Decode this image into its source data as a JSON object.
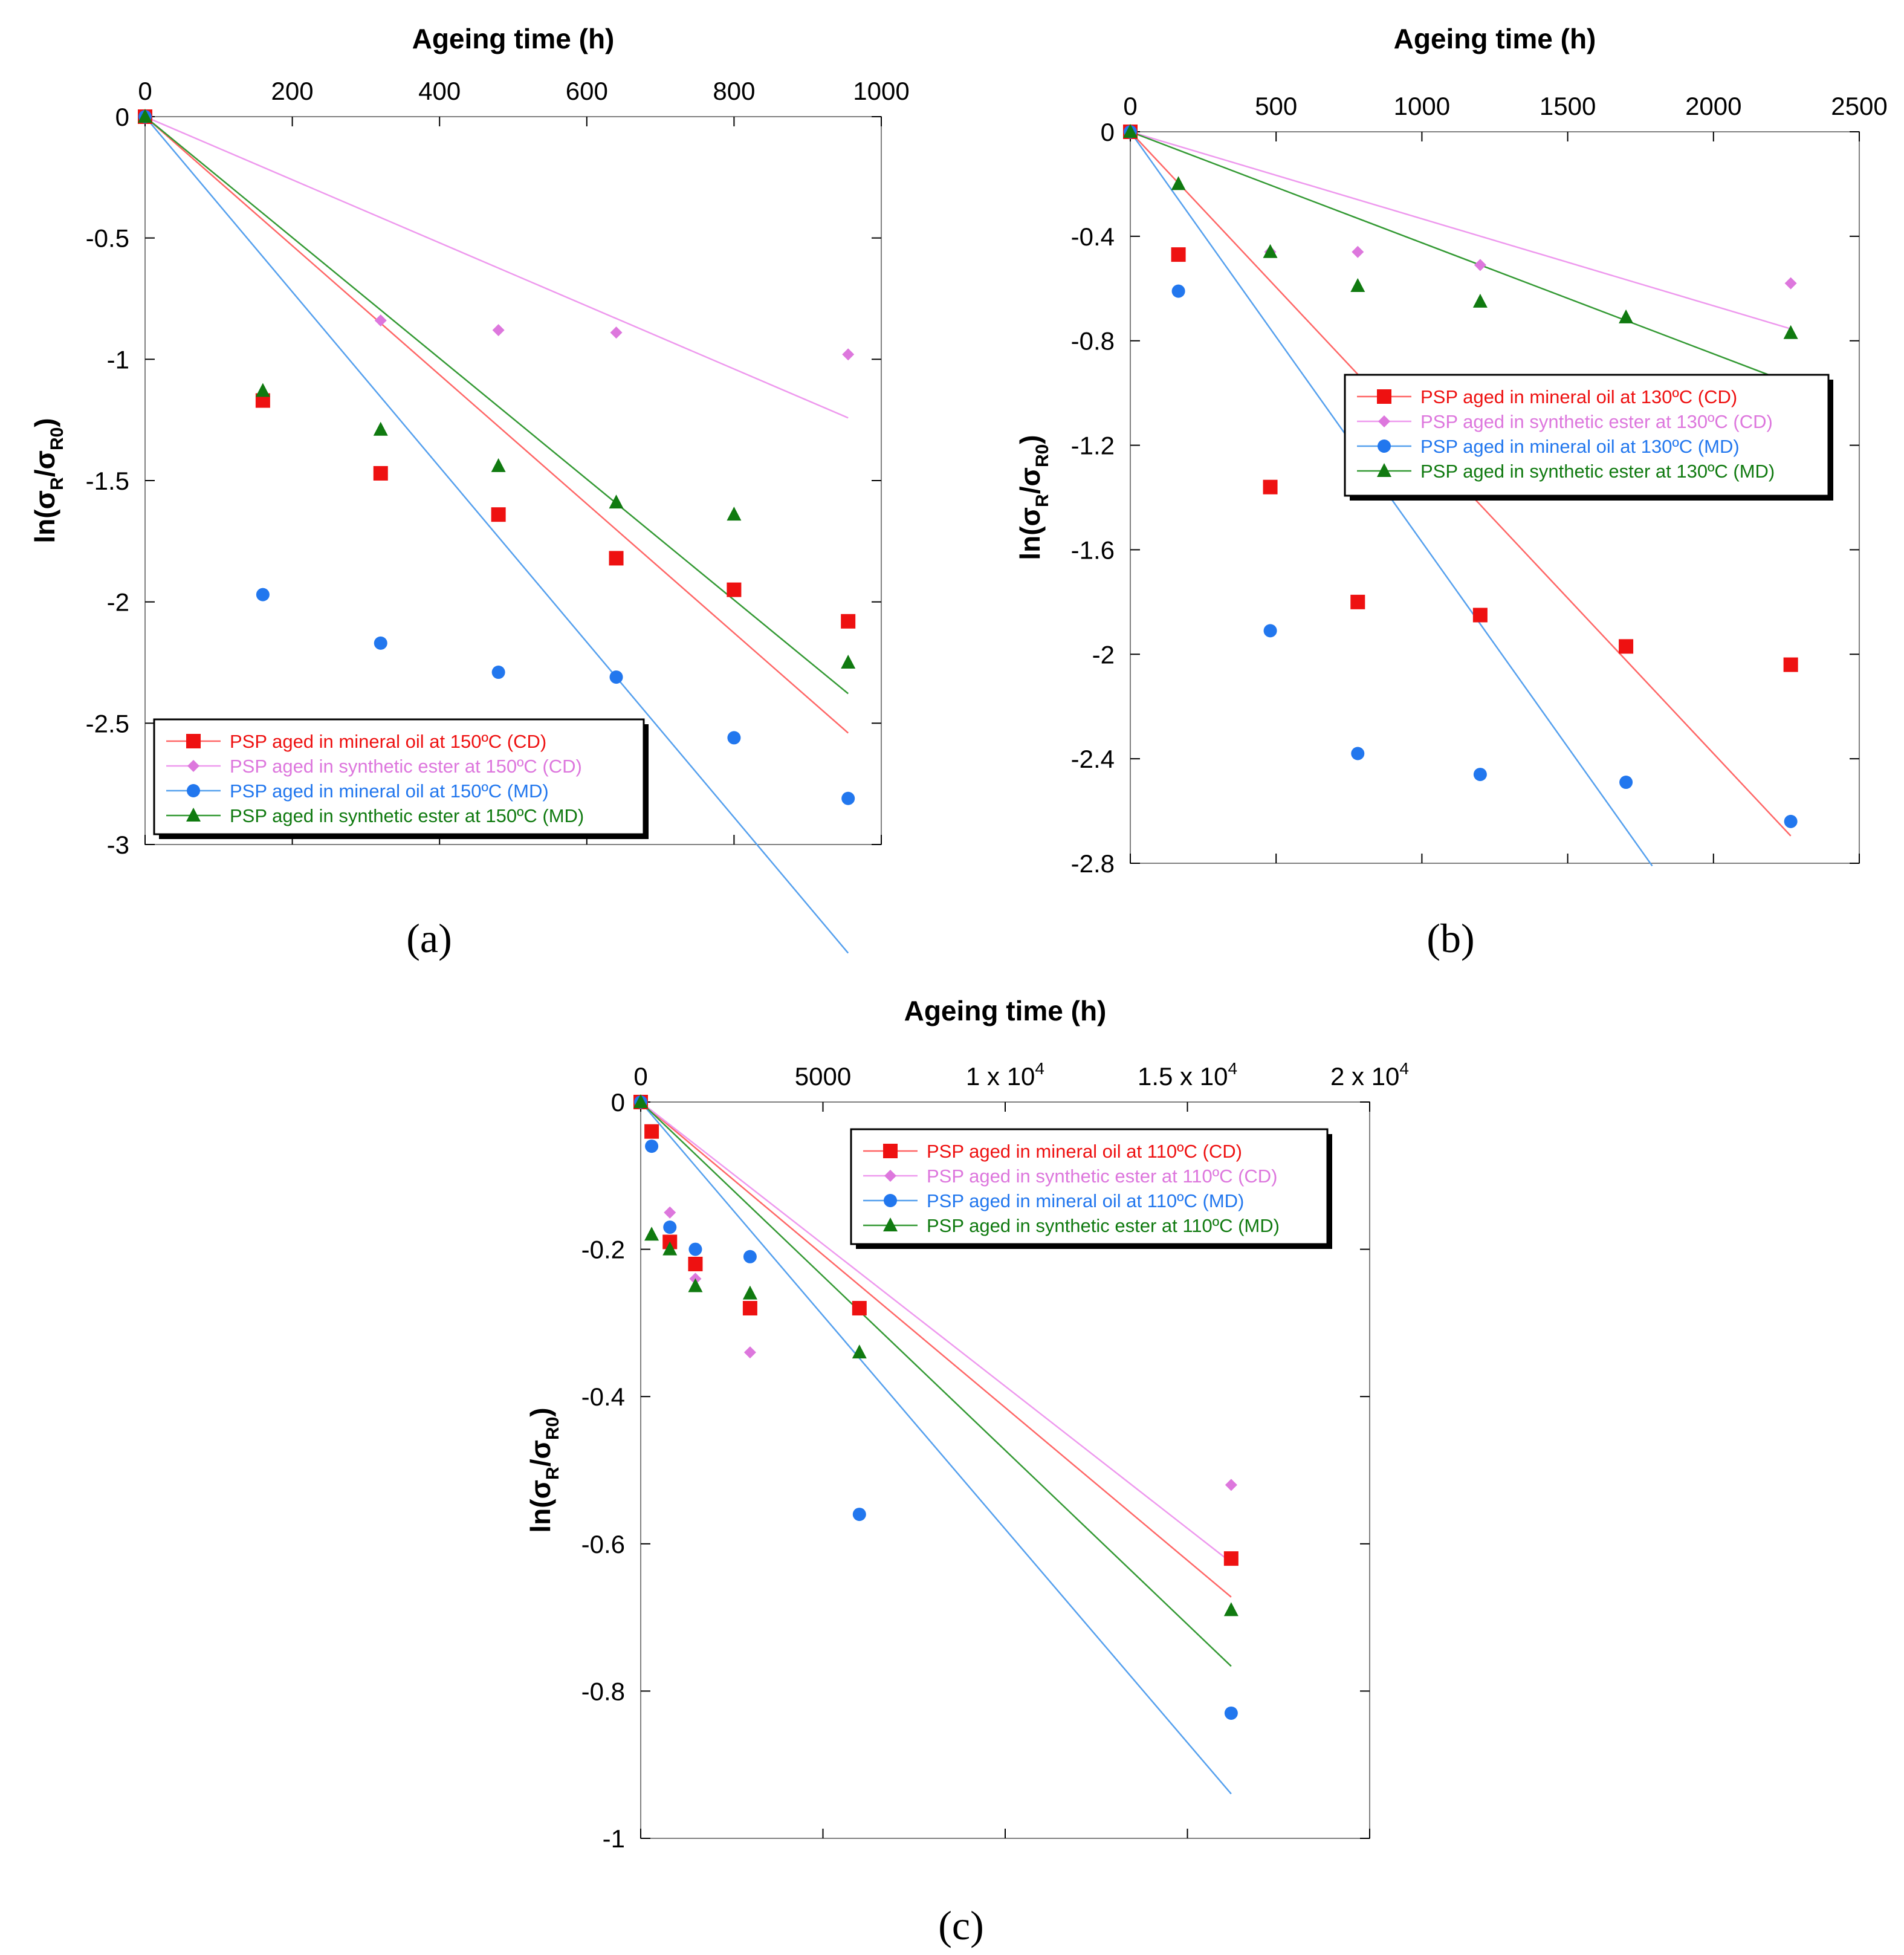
{
  "colors": {
    "mineral_cd": "#ee1111",
    "ester_cd": "#dd77dd",
    "mineral_md": "#2277ee",
    "ester_md": "#107a10",
    "fit_mineral_cd": "#ff6666",
    "fit_ester_cd": "#ee99ee",
    "fit_mineral_md": "#55a0ee",
    "fit_ester_md": "#339933"
  },
  "chart_data": [
    {
      "type": "scatter",
      "panel_label": "(a)",
      "xlabel": "Ageing time (h)",
      "ylabel_parts": [
        "ln(σ",
        "R",
        "/σ",
        "R0",
        ")"
      ],
      "xlim": [
        0,
        1000
      ],
      "ylim": [
        -3,
        0
      ],
      "xticks": [
        0,
        200,
        400,
        600,
        800,
        1000
      ],
      "xtick_labels": [
        "0",
        "200",
        "400",
        "600",
        "800",
        "1000"
      ],
      "yticks": [
        0,
        -0.5,
        -1,
        -1.5,
        -2,
        -2.5,
        -3
      ],
      "ytick_labels": [
        "0",
        "-0.5",
        "-1",
        "-1.5",
        "-2",
        "-2.5",
        "-3"
      ],
      "legend_position": "bottom-left",
      "series": [
        {
          "name": "PSP aged in mineral oil at 150ºC (CD)",
          "marker": "square",
          "color_key": "mineral_cd",
          "fit_color_key": "fit_mineral_cd",
          "x": [
            0,
            160,
            320,
            480,
            640,
            800,
            955
          ],
          "y": [
            0,
            -1.17,
            -1.47,
            -1.64,
            -1.82,
            -1.95,
            -2.08
          ],
          "fit_slope": -0.00266,
          "fit_end": 955
        },
        {
          "name": "PSP aged in synthetic ester at 150ºC (CD)",
          "marker": "diamond",
          "color_key": "ester_cd",
          "fit_color_key": "fit_ester_cd",
          "x": [
            0,
            320,
            480,
            640,
            955
          ],
          "y": [
            0,
            -0.84,
            -0.88,
            -0.89,
            -0.98
          ],
          "fit_slope": -0.0013,
          "fit_end": 955
        },
        {
          "name": "PSP aged in mineral oil at 150ºC (MD)",
          "marker": "circle",
          "color_key": "mineral_md",
          "fit_color_key": "fit_mineral_md",
          "x": [
            0,
            160,
            320,
            480,
            640,
            800,
            955
          ],
          "y": [
            0,
            -1.97,
            -2.17,
            -2.29,
            -2.31,
            -2.56,
            -2.81
          ],
          "fit_slope": -0.00361,
          "fit_end": 955
        },
        {
          "name": "PSP aged in synthetic ester at 150ºC (MD)",
          "marker": "triangle",
          "color_key": "ester_md",
          "fit_color_key": "fit_ester_md",
          "x": [
            0,
            160,
            320,
            480,
            640,
            800,
            955
          ],
          "y": [
            0,
            -1.13,
            -1.29,
            -1.44,
            -1.59,
            -1.64,
            -2.25
          ],
          "fit_slope": -0.00249,
          "fit_end": 955
        }
      ]
    },
    {
      "type": "scatter",
      "panel_label": "(b)",
      "xlabel": "Ageing time (h)",
      "ylabel_parts": [
        "ln(σ",
        "R",
        "/σ",
        "R0",
        ")"
      ],
      "xlim": [
        0,
        2500
      ],
      "ylim": [
        -2.8,
        0
      ],
      "xticks": [
        0,
        500,
        1000,
        1500,
        2000,
        2500
      ],
      "xtick_labels": [
        "0",
        "500",
        "1000",
        "1500",
        "2000",
        "2500"
      ],
      "yticks": [
        0,
        -0.4,
        -0.8,
        -1.2,
        -1.6,
        -2,
        -2.4,
        -2.8
      ],
      "ytick_labels": [
        "0",
        "-0.4",
        "-0.8",
        "-1.2",
        "-1.6",
        "-2",
        "-2.4",
        "-2.8"
      ],
      "legend_position": "middle-right",
      "series": [
        {
          "name": "PSP aged in mineral oil at 130ºC (CD)",
          "marker": "square",
          "color_key": "mineral_cd",
          "fit_color_key": "fit_mineral_cd",
          "x": [
            0,
            165,
            480,
            780,
            1200,
            1700,
            2265
          ],
          "y": [
            0,
            -0.47,
            -1.36,
            -1.8,
            -1.85,
            -1.97,
            -2.04
          ],
          "fit_slope": -0.00119,
          "fit_end": 2265
        },
        {
          "name": "PSP aged in synthetic ester at 130ºC (CD)",
          "marker": "diamond",
          "color_key": "ester_cd",
          "fit_color_key": "fit_ester_cd",
          "x": [
            0,
            480,
            780,
            1200,
            2265
          ],
          "y": [
            0,
            -0.46,
            -0.46,
            -0.51,
            -0.58
          ],
          "fit_slope": -0.000333,
          "fit_end": 2265
        },
        {
          "name": "PSP aged in mineral oil at 130ºC (MD)",
          "marker": "circle",
          "color_key": "mineral_md",
          "fit_color_key": "fit_mineral_md",
          "x": [
            0,
            165,
            480,
            780,
            1200,
            1700,
            2265
          ],
          "y": [
            0,
            -0.61,
            -1.91,
            -2.38,
            -2.46,
            -2.49,
            -2.64
          ],
          "fit_slope": -0.00157,
          "fit_end": 1790
        },
        {
          "name": "PSP aged in synthetic ester at 130ºC (MD)",
          "marker": "triangle",
          "color_key": "ester_md",
          "fit_color_key": "fit_ester_md",
          "x": [
            0,
            165,
            480,
            780,
            1200,
            1700,
            2265
          ],
          "y": [
            0,
            -0.2,
            -0.46,
            -0.59,
            -0.65,
            -0.71,
            -0.77
          ],
          "fit_slope": -0.000425,
          "fit_end": 2265
        }
      ]
    },
    {
      "type": "scatter",
      "panel_label": "(c)",
      "xlabel": "Ageing time (h)",
      "ylabel_parts": [
        "ln(σ",
        "R",
        "/σ",
        "R0",
        ")"
      ],
      "xlim": [
        0,
        20000
      ],
      "ylim": [
        -1,
        0
      ],
      "xticks": [
        0,
        5000,
        10000,
        15000,
        20000
      ],
      "xtick_labels": [
        "0",
        "5000",
        "1 x 10",
        "1.5 x 10",
        "2 x 10"
      ],
      "xtick_exponents": [
        "",
        "",
        "4",
        "4",
        "4"
      ],
      "yticks": [
        0,
        -0.2,
        -0.4,
        -0.6,
        -0.8,
        -1
      ],
      "ytick_labels": [
        "0",
        "-0.2",
        "-0.4",
        "-0.6",
        "-0.8",
        "-1"
      ],
      "legend_position": "top-right",
      "series": [
        {
          "name": "PSP aged in mineral oil at 110ºC (CD)",
          "marker": "square",
          "color_key": "mineral_cd",
          "fit_color_key": "fit_mineral_cd",
          "x": [
            0,
            300,
            800,
            1500,
            3000,
            6000,
            16200
          ],
          "y": [
            0,
            -0.04,
            -0.19,
            -0.22,
            -0.28,
            -0.28,
            -0.62
          ],
          "fit_slope": -4.15e-05,
          "fit_end": 16200
        },
        {
          "name": "PSP aged in synthetic ester at 110ºC (CD)",
          "marker": "diamond",
          "color_key": "ester_cd",
          "fit_color_key": "fit_ester_cd",
          "x": [
            0,
            800,
            1500,
            3000,
            16200
          ],
          "y": [
            0,
            -0.15,
            -0.24,
            -0.34,
            -0.52
          ],
          "fit_slope": -3.86e-05,
          "fit_end": 16200
        },
        {
          "name": "PSP aged in mineral oil at 110ºC (MD)",
          "marker": "circle",
          "color_key": "mineral_md",
          "fit_color_key": "fit_mineral_md",
          "x": [
            0,
            300,
            800,
            1500,
            3000,
            6000,
            16200
          ],
          "y": [
            0,
            -0.06,
            -0.17,
            -0.2,
            -0.21,
            -0.56,
            -0.83
          ],
          "fit_slope": -5.8e-05,
          "fit_end": 16200
        },
        {
          "name": "PSP aged in synthetic ester at 110ºC (MD)",
          "marker": "triangle",
          "color_key": "ester_md",
          "fit_color_key": "fit_ester_md",
          "x": [
            0,
            300,
            800,
            1500,
            3000,
            6000,
            16200
          ],
          "y": [
            0,
            -0.18,
            -0.2,
            -0.25,
            -0.26,
            -0.34,
            -0.69
          ],
          "fit_slope": -4.73e-05,
          "fit_end": 16200
        }
      ]
    }
  ]
}
